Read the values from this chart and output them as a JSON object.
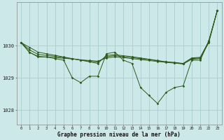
{
  "xlabel": "Graphe pression niveau de la mer (hPa)",
  "background_color": "#cce8e8",
  "grid_color": "#aacccc",
  "line_color": "#2d5a1b",
  "x_ticks": [
    0,
    1,
    2,
    3,
    4,
    5,
    6,
    7,
    8,
    9,
    10,
    11,
    12,
    13,
    14,
    15,
    16,
    17,
    18,
    19,
    20,
    21,
    22,
    23
  ],
  "ylim": [
    1027.55,
    1031.35
  ],
  "ytick_vals": [
    1028,
    1029,
    1030
  ],
  "main_line": [
    1030.1,
    1029.8,
    1029.65,
    1029.65,
    1029.6,
    1029.55,
    1029.0,
    1028.85,
    1029.05,
    1029.05,
    1029.75,
    1029.8,
    1029.55,
    1029.45,
    1028.7,
    1028.45,
    1028.2,
    1028.55,
    1028.7,
    1028.75,
    1029.55,
    1029.55,
    1030.15,
    1031.1
  ],
  "line_nearly_straight": [
    1030.1,
    1029.79,
    1029.67,
    1029.65,
    1029.63,
    1029.61,
    1029.59,
    1029.56,
    1029.54,
    1029.52,
    1029.62,
    1029.65,
    1029.63,
    1029.6,
    1029.57,
    1029.54,
    1029.51,
    1029.48,
    1029.46,
    1029.43,
    1029.58,
    1029.6,
    1030.1,
    1031.1
  ],
  "line_top_straight": [
    1030.1,
    1029.87,
    1029.73,
    1029.7,
    1029.67,
    1029.63,
    1029.59,
    1029.56,
    1029.52,
    1029.49,
    1029.66,
    1029.69,
    1029.66,
    1029.63,
    1029.6,
    1029.57,
    1029.53,
    1029.5,
    1029.47,
    1029.44,
    1029.6,
    1029.62,
    1030.12,
    1031.1
  ],
  "line_flat_top": [
    1030.1,
    1029.95,
    1029.8,
    1029.75,
    1029.7,
    1029.65,
    1029.6,
    1029.55,
    1029.5,
    1029.45,
    1029.7,
    1029.72,
    1029.69,
    1029.66,
    1029.62,
    1029.58,
    1029.54,
    1029.5,
    1029.48,
    1029.45,
    1029.62,
    1029.64,
    1030.14,
    1031.1
  ]
}
